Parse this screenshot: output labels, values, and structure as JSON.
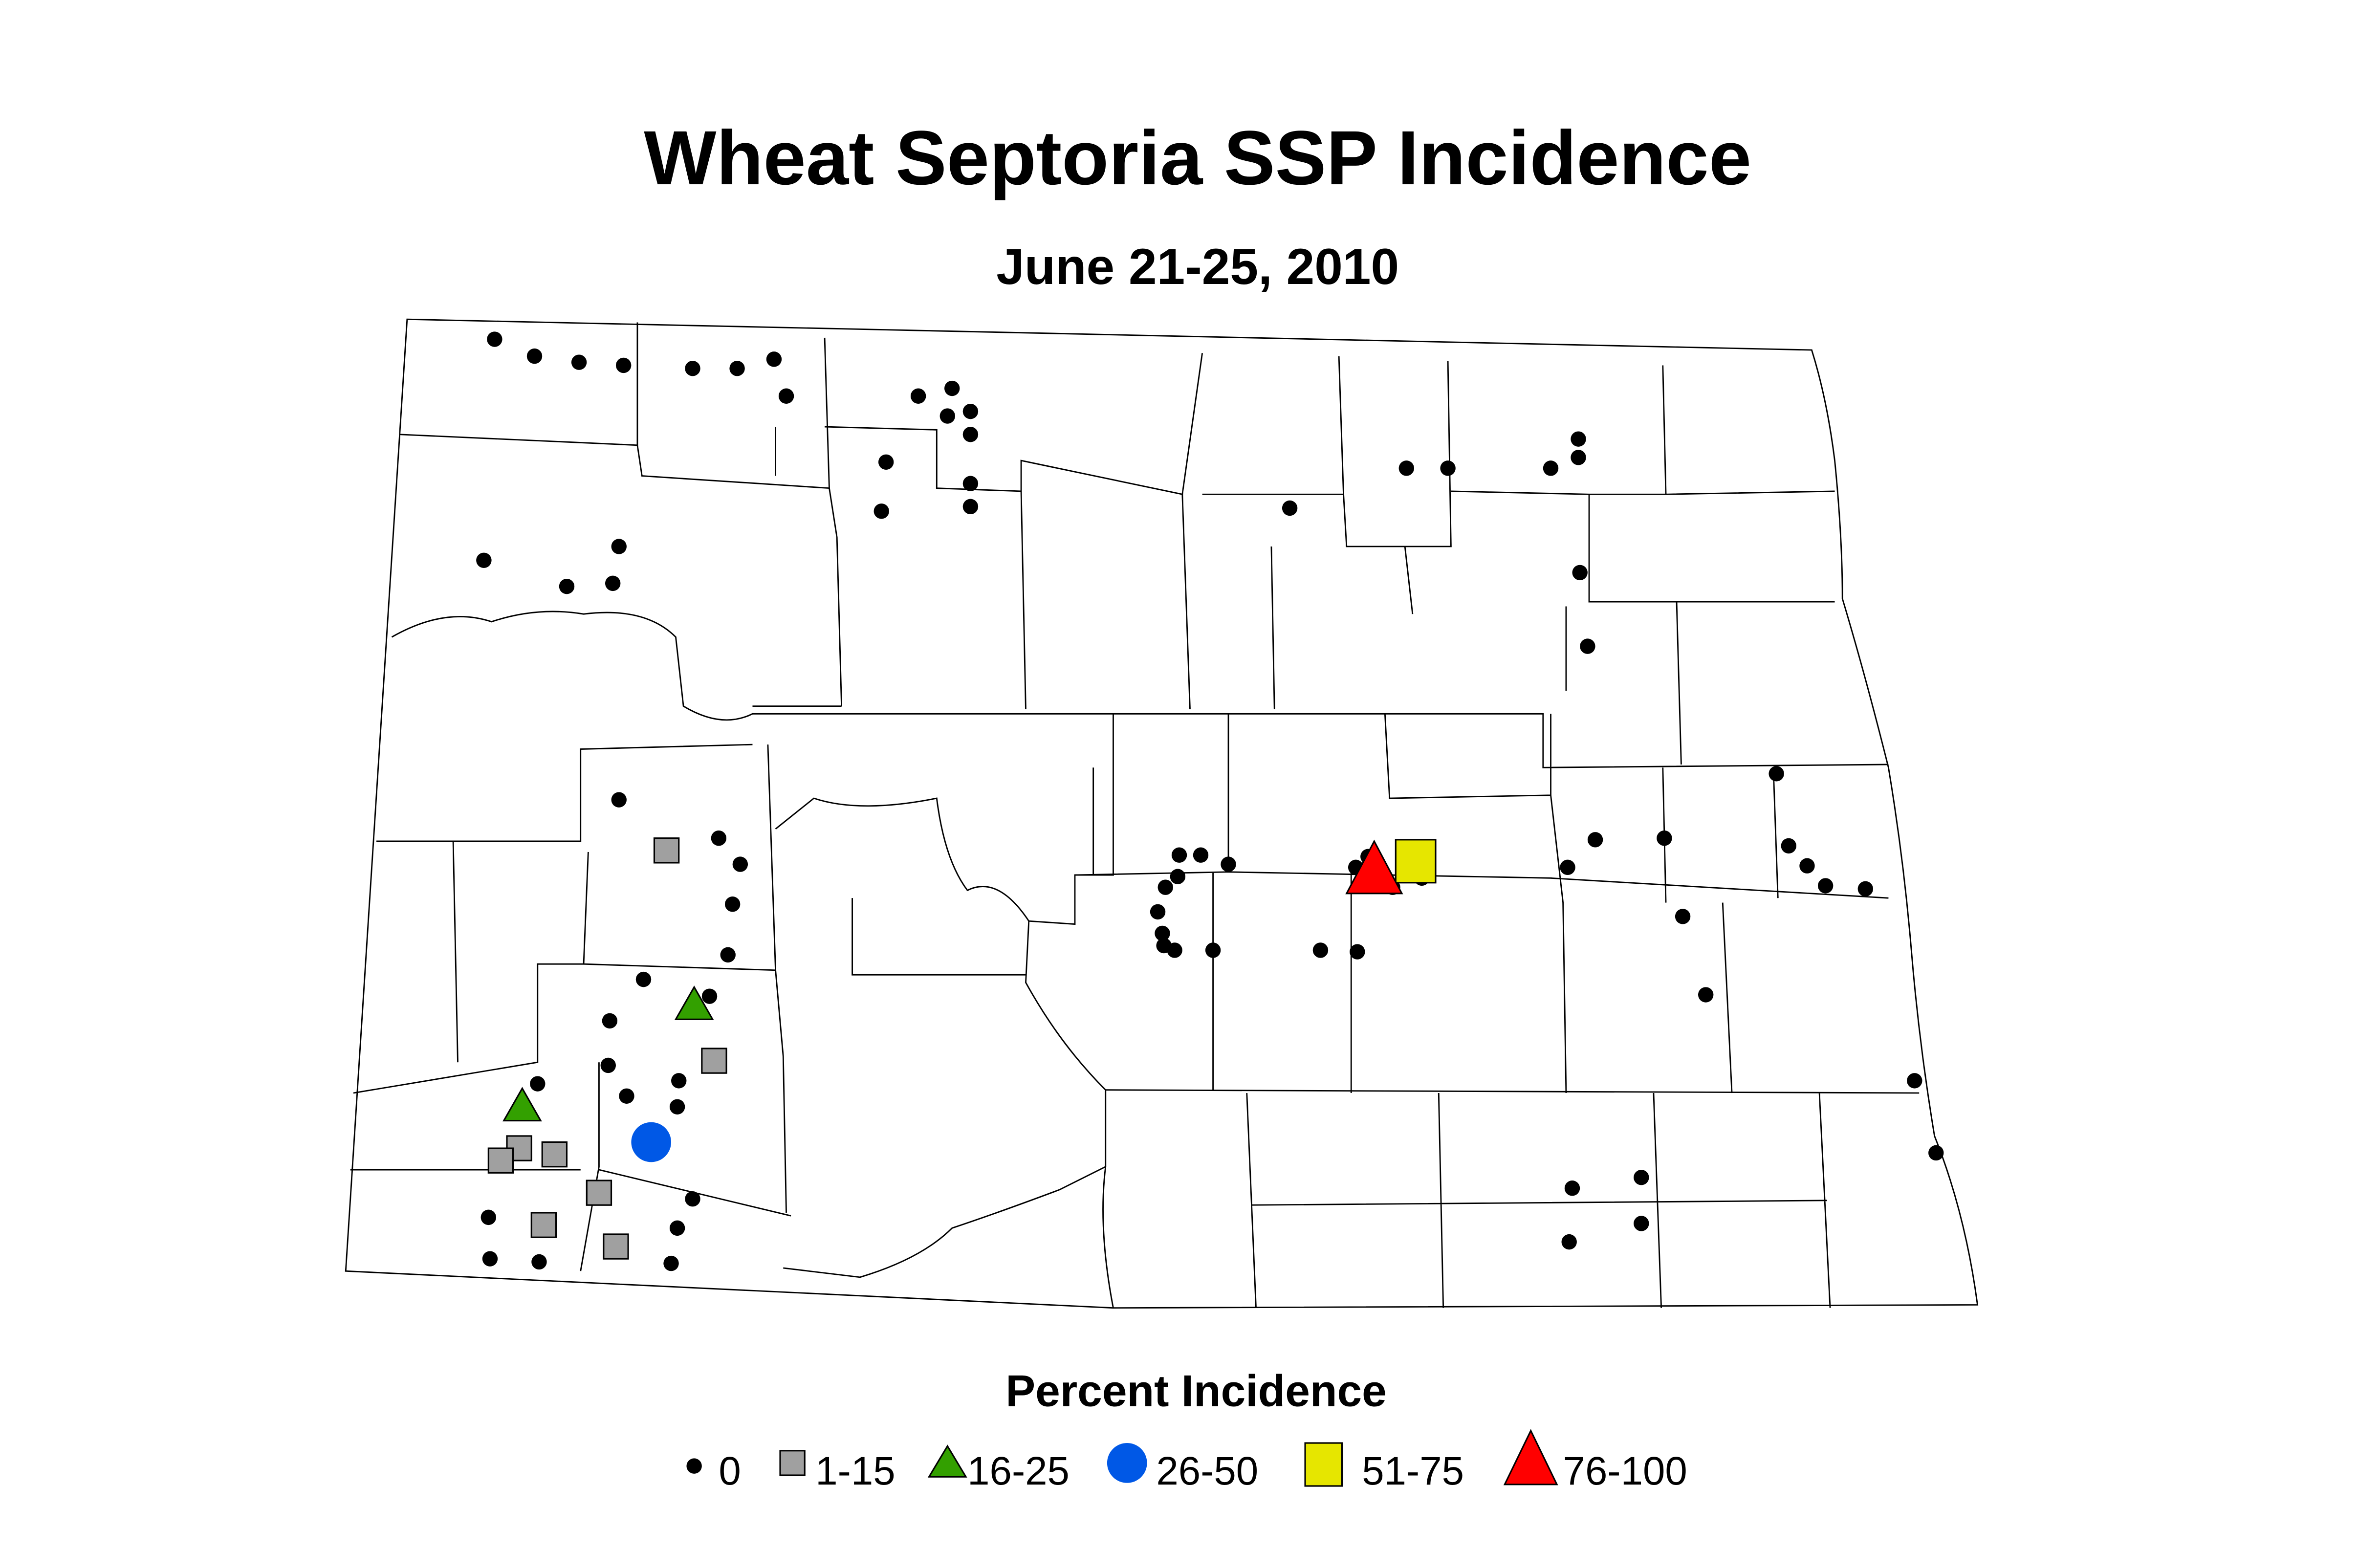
{
  "title": "Wheat Septoria SSP Incidence",
  "subtitle": "June 21-25, 2010",
  "legend": {
    "title": "Percent Incidence",
    "items": [
      {
        "label": "0",
        "shape": "dot",
        "color": "#000000"
      },
      {
        "label": "1-15",
        "shape": "square",
        "color": "#a0a0a0"
      },
      {
        "label": "16-25",
        "shape": "triangle",
        "color": "#33a000"
      },
      {
        "label": "26-50",
        "shape": "circle",
        "color": "#0058e6"
      },
      {
        "label": "51-75",
        "shape": "square",
        "color": "#e6e600"
      },
      {
        "label": "76-100",
        "shape": "triangle",
        "color": "#ff0000"
      }
    ]
  }
}
